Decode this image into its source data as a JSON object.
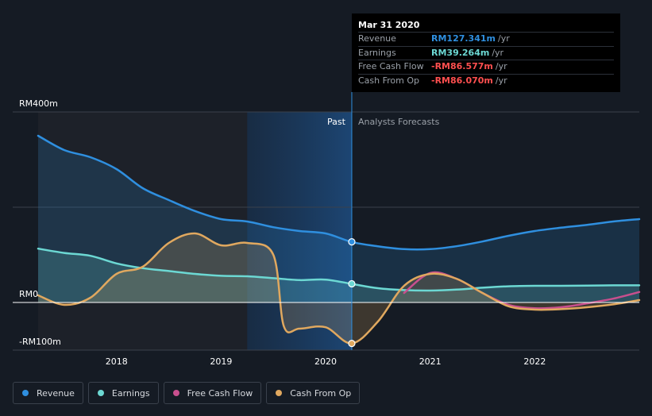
{
  "colors": {
    "background": "#151b24",
    "revenue": "#2f8fdf",
    "earnings": "#6cd8d3",
    "free_cash_flow": "#c84f8e",
    "cash_from_op": "#e0a85f",
    "negative": "#ff4f4f"
  },
  "tooltip": {
    "date": "Mar 31 2020",
    "rows": [
      {
        "label": "Revenue",
        "value": "RM127.341m",
        "unit": "/yr",
        "color": "#2f8fdf"
      },
      {
        "label": "Earnings",
        "value": "RM39.264m",
        "unit": "/yr",
        "color": "#6cd8d3"
      },
      {
        "label": "Free Cash Flow",
        "value": "-RM86.577m",
        "unit": "/yr",
        "color": "#ff4f4f"
      },
      {
        "label": "Cash From Op",
        "value": "-RM86.070m",
        "unit": "/yr",
        "color": "#ff4f4f"
      }
    ]
  },
  "legend": [
    {
      "label": "Revenue",
      "color": "#2f8fdf"
    },
    {
      "label": "Earnings",
      "color": "#6cd8d3"
    },
    {
      "label": "Free Cash Flow",
      "color": "#c84f8e"
    },
    {
      "label": "Cash From Op",
      "color": "#e0a85f"
    }
  ],
  "chart_data": {
    "type": "line",
    "title": "",
    "xlabel": "",
    "ylabel": "",
    "xlim": [
      2017.25,
      2023.0
    ],
    "ylim": [
      -100,
      400
    ],
    "x_ticks": [
      2018,
      2019,
      2020,
      2021,
      2022
    ],
    "x_tick_labels": [
      "2018",
      "2019",
      "2020",
      "2021",
      "2022"
    ],
    "y_tick_labels": [
      {
        "value": 400,
        "label": "RM400m"
      },
      {
        "value": 0,
        "label": "RM0"
      },
      {
        "value": -100,
        "label": "-RM100m"
      }
    ],
    "gridlines_y": [
      400,
      200
    ],
    "past_label": "Past",
    "forecast_label": "Analysts Forecasts",
    "past_region": [
      2019.25,
      2020.25
    ],
    "shaded_band": [
      2017.25,
      2019.25
    ],
    "highlight_x": 2020.25,
    "series": [
      {
        "name": "Revenue",
        "color": "#2f8fdf",
        "fill": true,
        "points": [
          [
            2017.25,
            350
          ],
          [
            2017.5,
            320
          ],
          [
            2017.75,
            305
          ],
          [
            2018.0,
            280
          ],
          [
            2018.25,
            240
          ],
          [
            2018.5,
            215
          ],
          [
            2018.75,
            192
          ],
          [
            2019.0,
            175
          ],
          [
            2019.25,
            170
          ],
          [
            2019.5,
            158
          ],
          [
            2019.75,
            150
          ],
          [
            2020.0,
            145
          ],
          [
            2020.25,
            127
          ],
          [
            2020.5,
            118
          ],
          [
            2020.75,
            112
          ],
          [
            2021.0,
            112
          ],
          [
            2021.25,
            118
          ],
          [
            2021.5,
            128
          ],
          [
            2021.75,
            140
          ],
          [
            2022.0,
            150
          ],
          [
            2022.25,
            157
          ],
          [
            2022.5,
            163
          ],
          [
            2022.75,
            170
          ],
          [
            2023.0,
            175
          ]
        ]
      },
      {
        "name": "Earnings",
        "color": "#6cd8d3",
        "fill": true,
        "points": [
          [
            2017.25,
            113
          ],
          [
            2017.5,
            104
          ],
          [
            2017.75,
            98
          ],
          [
            2018.0,
            82
          ],
          [
            2018.25,
            72
          ],
          [
            2018.5,
            66
          ],
          [
            2018.75,
            60
          ],
          [
            2019.0,
            56
          ],
          [
            2019.25,
            55
          ],
          [
            2019.5,
            51
          ],
          [
            2019.75,
            47
          ],
          [
            2020.0,
            48
          ],
          [
            2020.25,
            39
          ],
          [
            2020.5,
            30
          ],
          [
            2020.75,
            26
          ],
          [
            2021.0,
            25
          ],
          [
            2021.25,
            27
          ],
          [
            2021.5,
            31
          ],
          [
            2021.75,
            34
          ],
          [
            2022.0,
            35
          ],
          [
            2022.25,
            35
          ],
          [
            2022.5,
            35.5
          ],
          [
            2022.75,
            36
          ],
          [
            2023.0,
            36
          ]
        ]
      },
      {
        "name": "Free Cash Flow",
        "color": "#c84f8e",
        "fill": false,
        "points": [
          [
            2020.75,
            20
          ],
          [
            2021.0,
            62
          ],
          [
            2021.25,
            50
          ],
          [
            2021.5,
            20
          ],
          [
            2021.75,
            -5
          ],
          [
            2022.0,
            -12
          ],
          [
            2022.25,
            -10
          ],
          [
            2022.5,
            -2
          ],
          [
            2022.75,
            8
          ],
          [
            2023.0,
            22
          ]
        ]
      },
      {
        "name": "Cash From Op",
        "color": "#e0a85f",
        "fill": true,
        "points": [
          [
            2017.25,
            15
          ],
          [
            2017.5,
            -5
          ],
          [
            2017.75,
            10
          ],
          [
            2018.0,
            60
          ],
          [
            2018.25,
            75
          ],
          [
            2018.5,
            125
          ],
          [
            2018.75,
            145
          ],
          [
            2019.0,
            120
          ],
          [
            2019.25,
            125
          ],
          [
            2019.5,
            100
          ],
          [
            2019.6,
            -50
          ],
          [
            2019.75,
            -55
          ],
          [
            2020.0,
            -52
          ],
          [
            2020.25,
            -86
          ],
          [
            2020.5,
            -40
          ],
          [
            2020.75,
            35
          ],
          [
            2021.0,
            60
          ],
          [
            2021.25,
            50
          ],
          [
            2021.5,
            20
          ],
          [
            2021.75,
            -8
          ],
          [
            2022.0,
            -15
          ],
          [
            2022.25,
            -14
          ],
          [
            2022.5,
            -10
          ],
          [
            2022.75,
            -4
          ],
          [
            2023.0,
            5
          ]
        ]
      }
    ],
    "highlight_points": [
      {
        "series": "Revenue",
        "x": 2020.25,
        "y": 127.341
      },
      {
        "series": "Earnings",
        "x": 2020.25,
        "y": 39.264
      },
      {
        "series": "Free Cash Flow",
        "x": 2020.25,
        "y": -86.577
      },
      {
        "series": "Cash From Op",
        "x": 2020.25,
        "y": -86.07
      }
    ]
  }
}
